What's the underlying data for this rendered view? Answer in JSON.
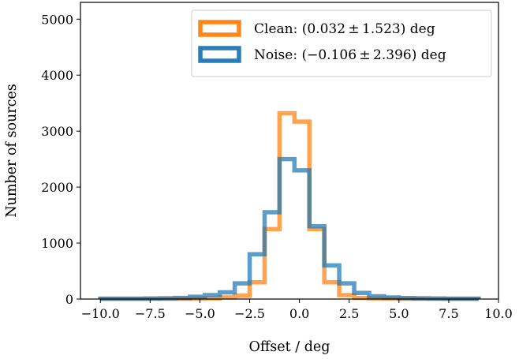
{
  "chart_data": {
    "type": "histogram",
    "xlabel": "Offset / deg",
    "ylabel": "Number of sources",
    "xlim": [
      -11.0,
      10.0
    ],
    "ylim": [
      0,
      5300
    ],
    "xticks": [
      -10.0,
      -7.5,
      -5.0,
      -2.5,
      0.0,
      2.5,
      5.0,
      7.5,
      10.0
    ],
    "xtick_labels": [
      "−10.0",
      "−7.5",
      "−5.0",
      "−2.5",
      "0.0",
      "2.5",
      "5.0",
      "7.5",
      "10.0"
    ],
    "yticks": [
      0,
      1000,
      2000,
      3000,
      4000,
      5000
    ],
    "ytick_labels": [
      "0",
      "1000",
      "2000",
      "3000",
      "4000",
      "5000"
    ],
    "grid": false,
    "legend_position": "top-right",
    "series": [
      {
        "name": "Clean: (0.032 ± 1.523) deg",
        "color": "#ff7f0e",
        "bin_edges": [
          -10.0,
          -9.25,
          -8.5,
          -7.75,
          -7.0,
          -6.25,
          -5.5,
          -4.75,
          -4.0,
          -3.25,
          -2.5,
          -1.75,
          -1.0,
          -0.25,
          0.5,
          1.25,
          2.0,
          2.75,
          3.5,
          4.25,
          5.0,
          5.75,
          6.5,
          7.25,
          8.0,
          9.0
        ],
        "counts": [
          5,
          5,
          5,
          5,
          5,
          5,
          8,
          12,
          30,
          60,
          300,
          1250,
          3320,
          3170,
          1250,
          300,
          70,
          20,
          10,
          8,
          6,
          5,
          5,
          5,
          5
        ]
      },
      {
        "name": "Noise: (−0.106 ± 2.396) deg",
        "color": "#1f77b4",
        "bin_edges": [
          -10.0,
          -9.25,
          -8.5,
          -7.75,
          -7.0,
          -6.25,
          -5.5,
          -4.75,
          -4.0,
          -3.25,
          -2.5,
          -1.75,
          -1.0,
          -0.25,
          0.5,
          1.25,
          2.0,
          2.75,
          3.5,
          4.25,
          5.0,
          5.75,
          6.5,
          7.25,
          8.0,
          9.0
        ],
        "counts": [
          5,
          5,
          5,
          8,
          12,
          20,
          40,
          70,
          120,
          280,
          800,
          1550,
          2500,
          2300,
          1300,
          600,
          280,
          110,
          50,
          28,
          18,
          12,
          8,
          5,
          5
        ]
      }
    ]
  }
}
